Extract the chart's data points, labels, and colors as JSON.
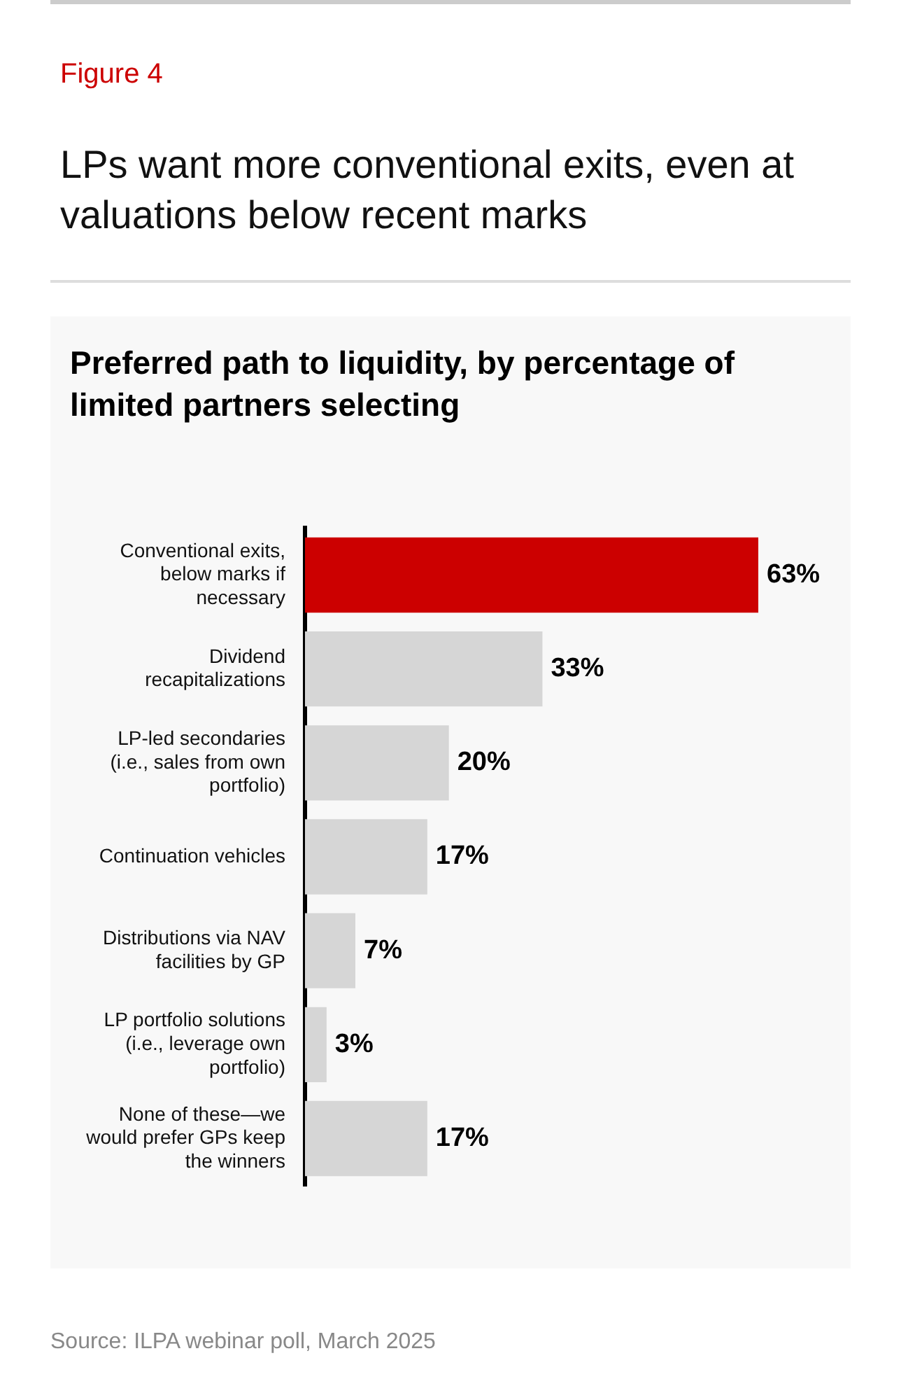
{
  "chart_data": {
    "type": "bar",
    "orientation": "horizontal",
    "title": "LPs want more conventional exits, even at valuations below recent marks",
    "subtitle": "Preferred path to liquidity, by percentage of limited partners selecting",
    "annotations": [
      "Figure 4",
      "Source: ILPA webinar poll, March 2025"
    ],
    "categories": [
      "Conventional exits, below marks if necessary",
      "Dividend recapitalizations",
      "LP-led secondaries (i.e., sales from own portfolio)",
      "Continuation vehicles",
      "Distributions via NAV facilities by GP",
      "LP portfolio solutions (i.e., leverage own portfolio)",
      "None of these—we would prefer GPs keep the winners"
    ],
    "values": [
      63,
      33,
      20,
      17,
      7,
      3,
      17
    ],
    "value_labels": [
      "63%",
      "33%",
      "20%",
      "17%",
      "7%",
      "3%",
      "17%"
    ],
    "colors": [
      "#cc0000",
      "#d6d6d6",
      "#d6d6d6",
      "#d6d6d6",
      "#d6d6d6",
      "#d6d6d6",
      "#d6d6d6"
    ],
    "legend": false
  }
}
